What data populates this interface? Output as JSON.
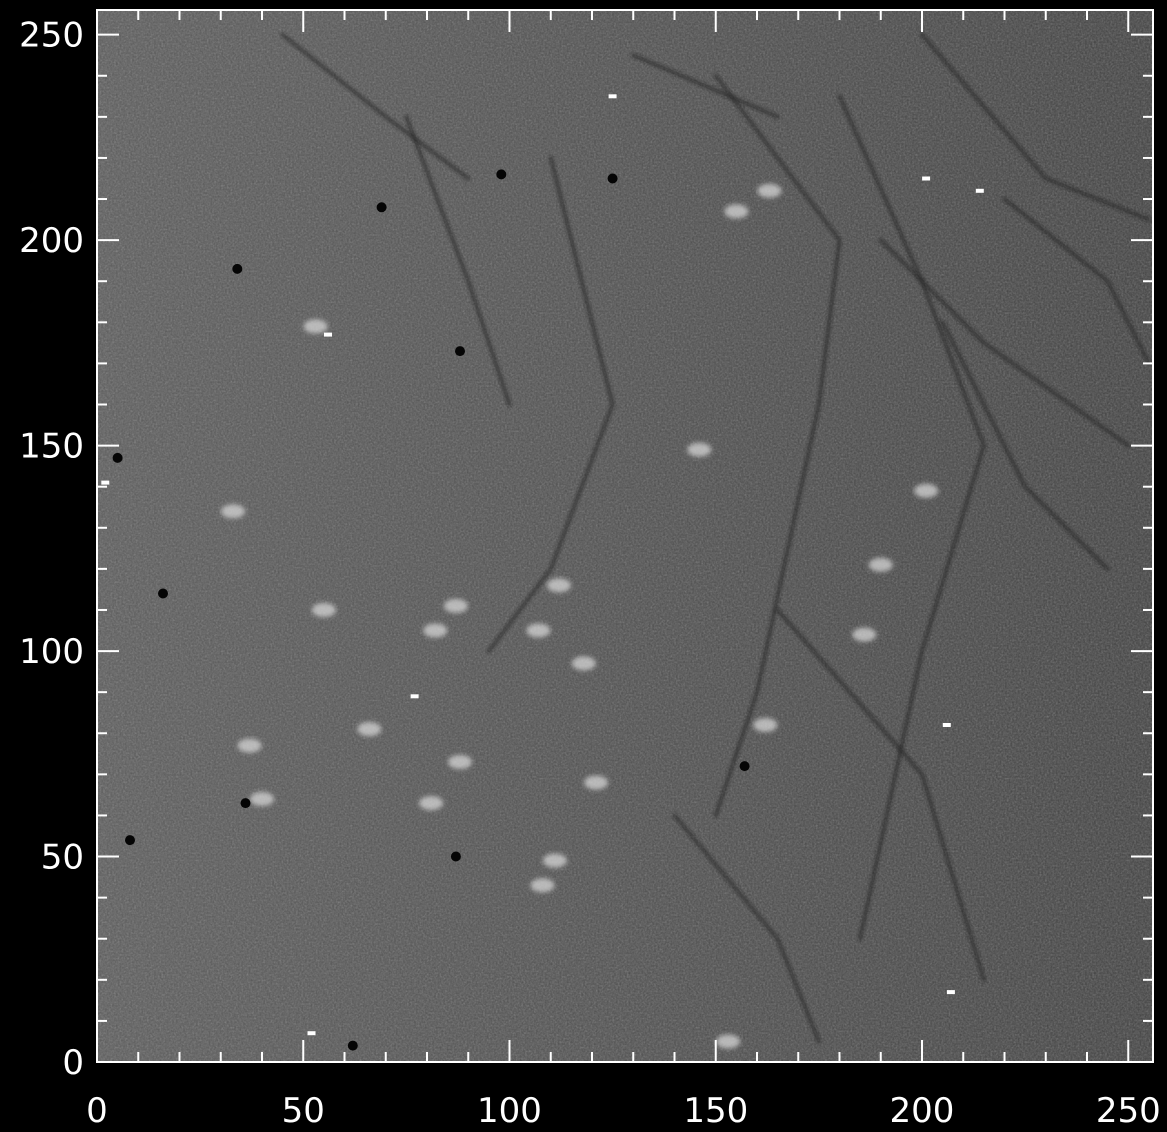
{
  "chart_data": {
    "type": "heatmap",
    "title": "",
    "xlabel": "",
    "ylabel": "",
    "colormap": "grayscale",
    "xlim": [
      0,
      255
    ],
    "ylim": [
      0,
      255
    ],
    "x_ticks": [
      0,
      50,
      100,
      150,
      200,
      250
    ],
    "y_ticks": [
      0,
      50,
      100,
      150,
      200,
      250
    ],
    "x_tick_labels": [
      "0",
      "50",
      "100",
      "150",
      "200",
      "250"
    ],
    "y_tick_labels": [
      "0",
      "50",
      "100",
      "150",
      "200",
      "250"
    ],
    "minor_tick_step": 10,
    "grid": false,
    "legend": "none",
    "bright_spots": [
      [
        33,
        134
      ],
      [
        55,
        110
      ],
      [
        82,
        105
      ],
      [
        87,
        111
      ],
      [
        118,
        97
      ],
      [
        112,
        116
      ],
      [
        107,
        105
      ],
      [
        121,
        68
      ],
      [
        88,
        73
      ],
      [
        81,
        63
      ],
      [
        66,
        81
      ],
      [
        37,
        77
      ],
      [
        111,
        49
      ],
      [
        108,
        43
      ],
      [
        162,
        82
      ],
      [
        186,
        104
      ],
      [
        190,
        121
      ],
      [
        201,
        139
      ],
      [
        155,
        207
      ],
      [
        163,
        212
      ],
      [
        53,
        179
      ],
      [
        153,
        5
      ],
      [
        40,
        64
      ],
      [
        146,
        149
      ]
    ],
    "white_pixels": [
      [
        125,
        235
      ],
      [
        56,
        177
      ],
      [
        52,
        7
      ],
      [
        77,
        89
      ],
      [
        201,
        215
      ],
      [
        214,
        212
      ],
      [
        207,
        17
      ],
      [
        2,
        141
      ],
      [
        206,
        82
      ]
    ],
    "dark_pixels": [
      [
        88,
        173
      ],
      [
        16,
        114
      ],
      [
        5,
        147
      ],
      [
        34,
        193
      ],
      [
        62,
        4
      ],
      [
        87,
        50
      ],
      [
        157,
        72
      ],
      [
        98,
        216
      ],
      [
        125,
        215
      ],
      [
        36,
        63
      ],
      [
        8,
        54
      ],
      [
        69,
        208
      ]
    ],
    "dark_streaks": [
      [
        [
          130,
          245
        ],
        [
          165,
          230
        ]
      ],
      [
        [
          150,
          240
        ],
        [
          180,
          200
        ],
        [
          175,
          160
        ],
        [
          160,
          90
        ],
        [
          150,
          60
        ]
      ],
      [
        [
          180,
          235
        ],
        [
          200,
          190
        ],
        [
          215,
          150
        ],
        [
          200,
          100
        ],
        [
          185,
          30
        ]
      ],
      [
        [
          200,
          250
        ],
        [
          230,
          215
        ],
        [
          255,
          205
        ]
      ],
      [
        [
          110,
          220
        ],
        [
          125,
          160
        ],
        [
          110,
          120
        ],
        [
          95,
          100
        ]
      ],
      [
        [
          75,
          230
        ],
        [
          90,
          190
        ],
        [
          100,
          160
        ]
      ],
      [
        [
          190,
          200
        ],
        [
          215,
          175
        ],
        [
          250,
          150
        ]
      ],
      [
        [
          165,
          110
        ],
        [
          200,
          70
        ],
        [
          215,
          20
        ]
      ],
      [
        [
          140,
          60
        ],
        [
          165,
          30
        ],
        [
          175,
          5
        ]
      ],
      [
        [
          45,
          250
        ],
        [
          70,
          230
        ],
        [
          90,
          215
        ]
      ],
      [
        [
          205,
          180
        ],
        [
          225,
          140
        ],
        [
          245,
          120
        ]
      ],
      [
        [
          220,
          210
        ],
        [
          245,
          190
        ],
        [
          255,
          170
        ]
      ]
    ],
    "colors": {
      "background": "#000000",
      "image_base": "#4b4b4b",
      "axes": "#ffffff",
      "tick_labels": "#ffffff"
    }
  }
}
